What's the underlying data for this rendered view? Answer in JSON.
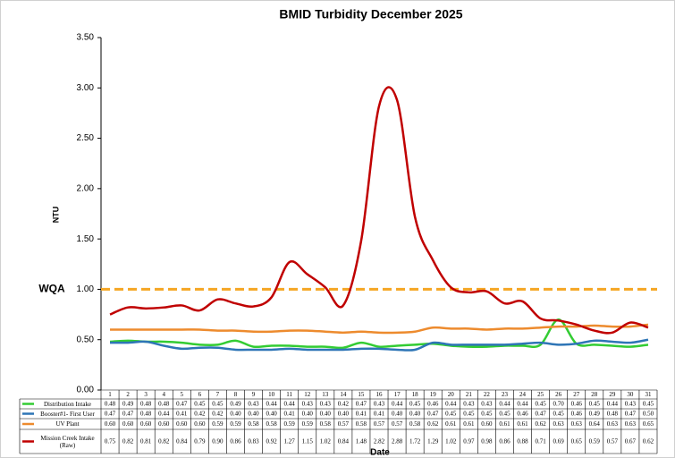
{
  "chart_data": {
    "type": "line",
    "title": "BMID Turbidity December 2025",
    "y_label": "NTU",
    "x_label": "Date",
    "categories": [
      "1",
      "2",
      "3",
      "4",
      "5",
      "6",
      "7",
      "8",
      "9",
      "10",
      "11",
      "12",
      "13",
      "14",
      "15",
      "16",
      "17",
      "18",
      "19",
      "20",
      "21",
      "22",
      "23",
      "24",
      "25",
      "26",
      "27",
      "28",
      "29",
      "30",
      "31"
    ],
    "ylim": [
      0,
      3.5
    ],
    "yticks": [
      {
        "value": 0,
        "label": "0.00"
      },
      {
        "value": 0.5,
        "label": "0.50"
      },
      {
        "value": 1,
        "label": "1.00"
      },
      {
        "value": 1.5,
        "label": "1.50"
      },
      {
        "value": 2,
        "label": "2.00"
      },
      {
        "value": 2.5,
        "label": "2.50"
      },
      {
        "value": 3,
        "label": "3.00"
      },
      {
        "value": 3.5,
        "label": "3.50"
      }
    ],
    "grid": false,
    "reference_line": {
      "label": "WQA",
      "value": 1,
      "color": "#f5a623"
    },
    "series": [
      {
        "name": "Distribution Intake",
        "color": "#33cc33",
        "values": [
          0.48,
          0.49,
          0.48,
          0.48,
          0.47,
          0.45,
          0.45,
          0.49,
          0.43,
          0.44,
          0.44,
          0.43,
          0.43,
          0.42,
          0.47,
          0.43,
          0.44,
          0.45,
          0.46,
          0.44,
          0.43,
          0.43,
          0.44,
          0.44,
          0.45,
          0.7,
          0.46,
          0.45,
          0.44,
          0.43,
          0.45
        ],
        "value_labels": [
          "0.48",
          "0.49",
          "0.48",
          "0.48",
          "0.47",
          "0.45",
          "0.45",
          "0.49",
          "0.43",
          "0.44",
          "0.44",
          "0.43",
          "0.43",
          "0.42",
          "0.47",
          "0.43",
          "0.44",
          "0.45",
          "0.46",
          "0.44",
          "0.43",
          "0.43",
          "0.44",
          "0.44",
          "0.45",
          "0.70",
          "0.46",
          "0.45",
          "0.44",
          "0.43",
          "0.45"
        ]
      },
      {
        "name": "Booster#1- First User",
        "color": "#2e75b6",
        "values": [
          0.47,
          0.47,
          0.48,
          0.44,
          0.41,
          0.42,
          0.42,
          0.4,
          0.4,
          0.4,
          0.41,
          0.4,
          0.4,
          0.4,
          0.41,
          0.41,
          0.4,
          0.4,
          0.47,
          0.45,
          0.45,
          0.45,
          0.45,
          0.46,
          0.47,
          0.45,
          0.46,
          0.49,
          0.48,
          0.47,
          0.5
        ],
        "value_labels": [
          "0.47",
          "0.47",
          "0.48",
          "0.44",
          "0.41",
          "0.42",
          "0.42",
          "0.40",
          "0.40",
          "0.40",
          "0.41",
          "0.40",
          "0.40",
          "0.40",
          "0.41",
          "0.41",
          "0.40",
          "0.40",
          "0.47",
          "0.45",
          "0.45",
          "0.45",
          "0.45",
          "0.46",
          "0.47",
          "0.45",
          "0.46",
          "0.49",
          "0.48",
          "0.47",
          "0.50"
        ]
      },
      {
        "name": "UV Plant",
        "color": "#ed8b2e",
        "values": [
          0.6,
          0.6,
          0.6,
          0.6,
          0.6,
          0.6,
          0.59,
          0.59,
          0.58,
          0.58,
          0.59,
          0.59,
          0.58,
          0.57,
          0.58,
          0.57,
          0.57,
          0.58,
          0.62,
          0.61,
          0.61,
          0.6,
          0.61,
          0.61,
          0.62,
          0.63,
          0.63,
          0.64,
          0.63,
          0.63,
          0.65
        ],
        "value_labels": [
          "0.60",
          "0.60",
          "0.60",
          "0.60",
          "0.60",
          "0.60",
          "0.59",
          "0.59",
          "0.58",
          "0.58",
          "0.59",
          "0.59",
          "0.58",
          "0.57",
          "0.58",
          "0.57",
          "0.57",
          "0.58",
          "0.62",
          "0.61",
          "0.61",
          "0.60",
          "0.61",
          "0.61",
          "0.62",
          "0.63",
          "0.63",
          "0.64",
          "0.63",
          "0.63",
          "0.65"
        ]
      },
      {
        "name": "Mission Creek Intake (Raw)",
        "color": "#c00000",
        "values": [
          0.75,
          0.82,
          0.81,
          0.82,
          0.84,
          0.79,
          0.9,
          0.86,
          0.83,
          0.92,
          1.27,
          1.15,
          1.02,
          0.84,
          1.48,
          2.82,
          2.88,
          1.72,
          1.29,
          1.02,
          0.97,
          0.98,
          0.86,
          0.88,
          0.71,
          0.69,
          0.65,
          0.59,
          0.57,
          0.67,
          0.62
        ],
        "value_labels": [
          "0.75",
          "0.82",
          "0.81",
          "0.82",
          "0.84",
          "0.79",
          "0.90",
          "0.86",
          "0.83",
          "0.92",
          "1.27",
          "1.15",
          "1.02",
          "0.84",
          "1.48",
          "2.82",
          "2.88",
          "1.72",
          "1.29",
          "1.02",
          "0.97",
          "0.98",
          "0.86",
          "0.88",
          "0.71",
          "0.69",
          "0.65",
          "0.59",
          "0.57",
          "0.67",
          "0.62"
        ]
      }
    ]
  }
}
